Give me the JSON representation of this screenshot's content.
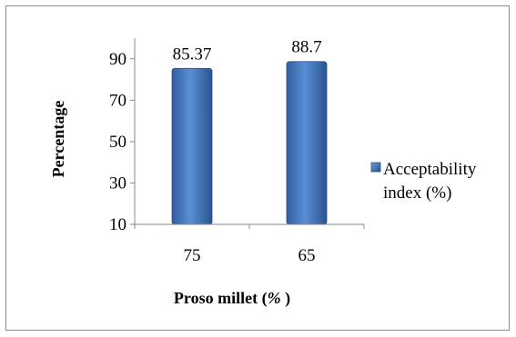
{
  "chart_data": {
    "type": "bar",
    "categories": [
      "75",
      "65"
    ],
    "series": [
      {
        "name": "Acceptability index (%)",
        "values": [
          85.37,
          88.7
        ],
        "color": "#3f6fb7"
      }
    ],
    "data_labels": [
      "85.37",
      "88.7"
    ],
    "title": "",
    "xlabel": "Proso millet (%)",
    "xlabel_parts": {
      "text": "Proso millet (",
      "unit": "%",
      "close": " )"
    },
    "ylabel": "Percentage",
    "ylim": [
      10,
      100
    ],
    "yticks": [
      10,
      30,
      50,
      70,
      90
    ],
    "grid": false,
    "legend_position": "right",
    "legend_lines": [
      "Acceptability",
      "index (%)"
    ]
  }
}
